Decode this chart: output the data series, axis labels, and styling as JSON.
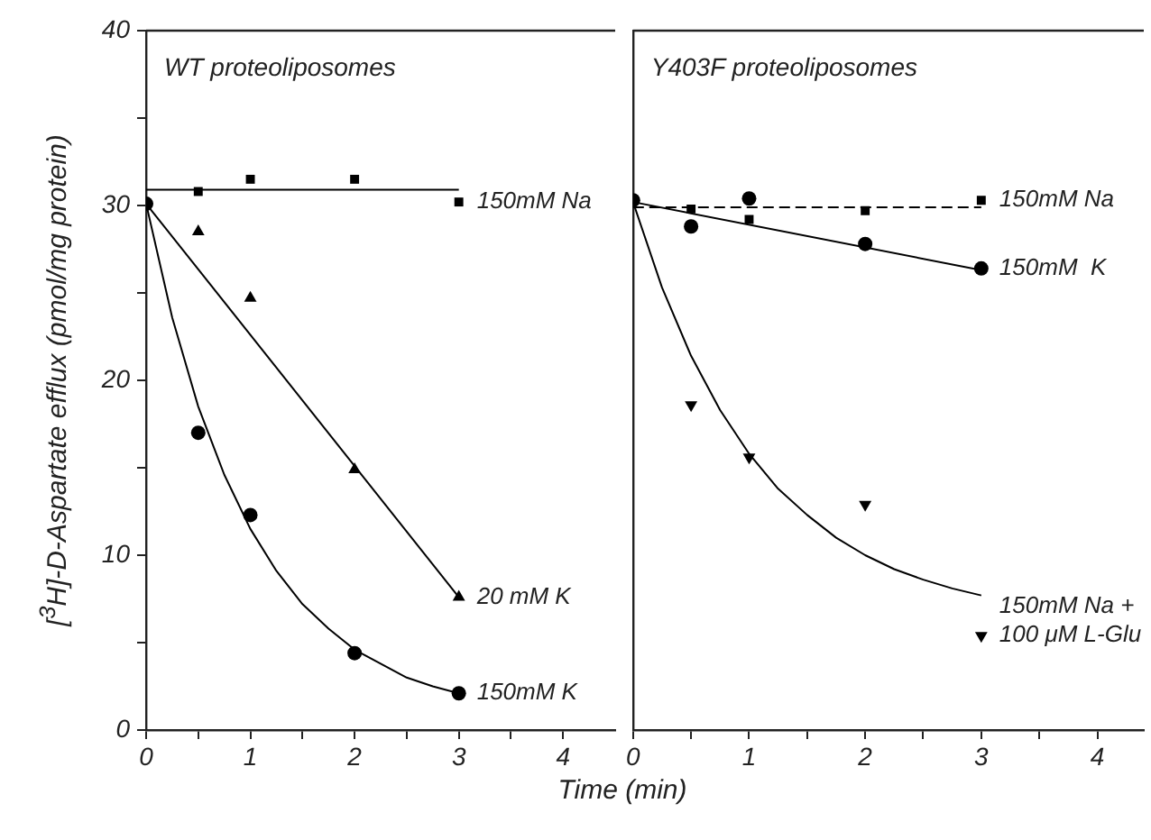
{
  "chart_data": [
    {
      "type": "scatter",
      "title": "WT proteoliposomes",
      "xlabel": "Time (min)",
      "ylabel": "[$^{3}$H]-D-Aspartate efflux (pmol/mg protein)",
      "xlim": [
        0,
        4.5
      ],
      "xticks": [
        0,
        {
          "value": 0.5,
          "label": null
        },
        1,
        {
          "value": 1.5,
          "label": null
        },
        2,
        {
          "value": 2.5,
          "label": null
        },
        3,
        {
          "value": 3.5,
          "label": null
        },
        4
      ],
      "ylim": [
        0,
        40
      ],
      "yticks": [
        0,
        {
          "value": 5,
          "label": null
        },
        10,
        {
          "value": 15,
          "label": null
        },
        20,
        {
          "value": 25,
          "label": null
        },
        30,
        {
          "value": 35,
          "label": null
        },
        40
      ],
      "grid": false,
      "legend": false,
      "series": [
        {
          "name": "150mM Na",
          "type": "scatter",
          "marker": "square",
          "color": "#000000",
          "x": [
            0.5,
            1,
            2,
            3
          ],
          "values": [
            30.8,
            31.5,
            31.5,
            30.2
          ]
        },
        {
          "name": "20 mM K",
          "type": "scatter",
          "marker": "triangle",
          "color": "#000000",
          "x": [
            0.5,
            1,
            2,
            3
          ],
          "values": [
            28.5,
            24.7,
            14.9,
            7.6
          ]
        },
        {
          "name": "150mM K",
          "type": "scatter",
          "marker": "circle",
          "color": "#000000",
          "x": [
            0,
            0.5,
            1,
            2,
            3
          ],
          "values": [
            30.1,
            17.0,
            12.3,
            4.4,
            2.1
          ]
        },
        {
          "type": "line",
          "marker": "none",
          "line_style": "solid",
          "color": "#000000",
          "x": [
            0,
            3
          ],
          "values": [
            30.9,
            30.9
          ]
        },
        {
          "type": "line",
          "marker": "none",
          "line_style": "solid",
          "color": "#000000",
          "x": [
            0,
            3
          ],
          "values": [
            30.1,
            7.6
          ]
        },
        {
          "type": "line",
          "marker": "none",
          "line_style": "solid",
          "color": "#000000",
          "x": [
            0,
            0.25,
            0.5,
            0.75,
            1,
            1.25,
            1.5,
            1.75,
            2,
            2.25,
            2.5,
            2.75,
            3
          ],
          "values": [
            30.1,
            23.6,
            18.5,
            14.6,
            11.5,
            9.1,
            7.2,
            5.8,
            4.6,
            3.8,
            3.0,
            2.5,
            2.1
          ]
        }
      ]
    },
    {
      "type": "scatter",
      "title": "Y403F proteoliposomes",
      "tick_labels": "x",
      "xlim": [
        0,
        4.4
      ],
      "xticks": [
        0,
        {
          "value": 0.5,
          "label": null
        },
        1,
        {
          "value": 1.5,
          "label": null
        },
        2,
        {
          "value": 2.5,
          "label": null
        },
        3,
        {
          "value": 3.5,
          "label": null
        },
        4
      ],
      "ylim": [
        0,
        40
      ],
      "grid": false,
      "legend": false,
      "series": [
        {
          "name": "150mM Na",
          "type": "scatter",
          "marker": "square",
          "color": "#000000",
          "x": [
            0.5,
            1,
            2,
            3
          ],
          "values": [
            29.8,
            29.2,
            29.7,
            30.3
          ]
        },
        {
          "name": "150mM  K",
          "type": "scatter",
          "marker": "circle",
          "color": "#000000",
          "x": [
            0,
            0.5,
            1,
            2,
            3
          ],
          "values": [
            30.3,
            28.8,
            30.4,
            27.8,
            26.4
          ]
        },
        {
          "name": "150mM Na + 100 μM L-Glu",
          "type": "scatter",
          "marker": "triangle-down",
          "color": "#000000",
          "x": [
            0.5,
            1,
            2,
            3
          ],
          "values": [
            18.6,
            15.6,
            12.9,
            5.4
          ]
        },
        {
          "type": "line",
          "marker": "none",
          "line_style": "dashed",
          "color": "#000000",
          "x": [
            0,
            3
          ],
          "values": [
            29.9,
            29.9
          ]
        },
        {
          "type": "line",
          "marker": "none",
          "line_style": "solid",
          "color": "#000000",
          "x": [
            0,
            3
          ],
          "values": [
            30.2,
            26.3
          ]
        },
        {
          "type": "line",
          "marker": "none",
          "line_style": "solid",
          "color": "#000000",
          "x": [
            0,
            0.25,
            0.5,
            0.75,
            1,
            1.25,
            1.5,
            1.75,
            2,
            2.25,
            2.5,
            2.75,
            3
          ],
          "values": [
            30.2,
            25.3,
            21.4,
            18.3,
            15.8,
            13.8,
            12.3,
            11.0,
            10.0,
            9.2,
            8.6,
            8.1,
            7.7
          ]
        }
      ]
    }
  ]
}
